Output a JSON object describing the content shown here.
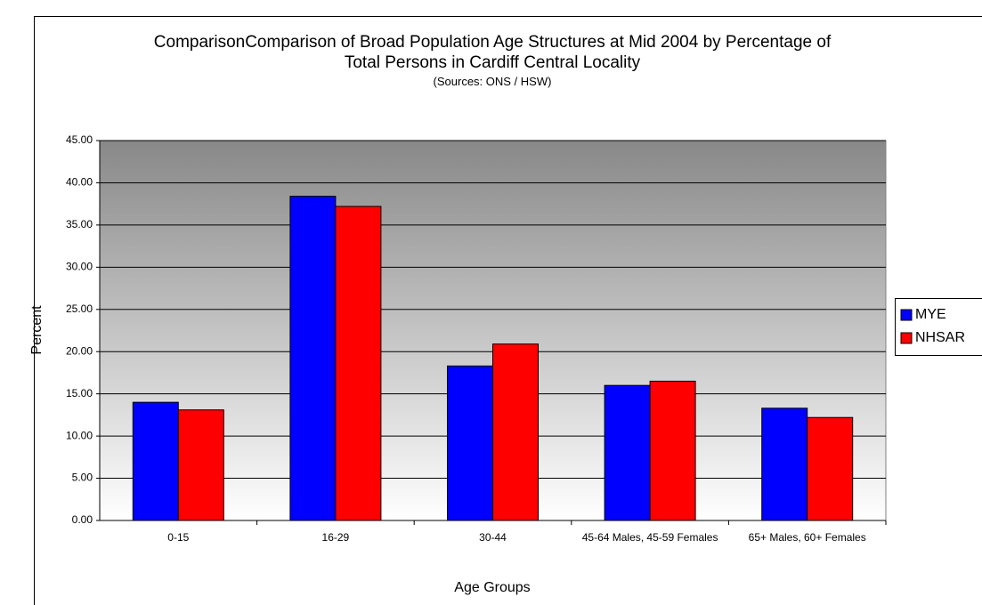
{
  "chart_data": {
    "type": "bar",
    "title": "ComparisonComparison of Broad Population Age Structures at Mid 2004 by Percentage of Total Persons in Cardiff Central Locality",
    "subtitle": "(Sources: ONS / HSW)",
    "x_label": "Age Groups",
    "y_label": "Percent",
    "categories": [
      "0-15",
      "16-29",
      "30-44",
      "45-64 Males, 45-59 Females",
      "65+ Males, 60+ Females"
    ],
    "series": [
      {
        "name": "MYE",
        "color": "#0000ff",
        "values": [
          14.0,
          38.4,
          18.3,
          16.0,
          13.3
        ]
      },
      {
        "name": "NHSAR",
        "color": "#ff0000",
        "values": [
          13.1,
          37.2,
          20.9,
          16.5,
          12.2
        ]
      }
    ],
    "ylim": [
      0,
      45
    ],
    "yticks": [
      {
        "value": 0,
        "label": "0.00"
      },
      {
        "value": 5,
        "label": "5.00"
      },
      {
        "value": 10,
        "label": "10.00"
      },
      {
        "value": 15,
        "label": "15.00"
      },
      {
        "value": 20,
        "label": "20.00"
      },
      {
        "value": 25,
        "label": "25.00"
      },
      {
        "value": 30,
        "label": "30.00"
      },
      {
        "value": 35,
        "label": "35.00"
      },
      {
        "value": 40,
        "label": "40.00"
      },
      {
        "value": 45,
        "label": "45.00"
      }
    ],
    "grid": true
  }
}
